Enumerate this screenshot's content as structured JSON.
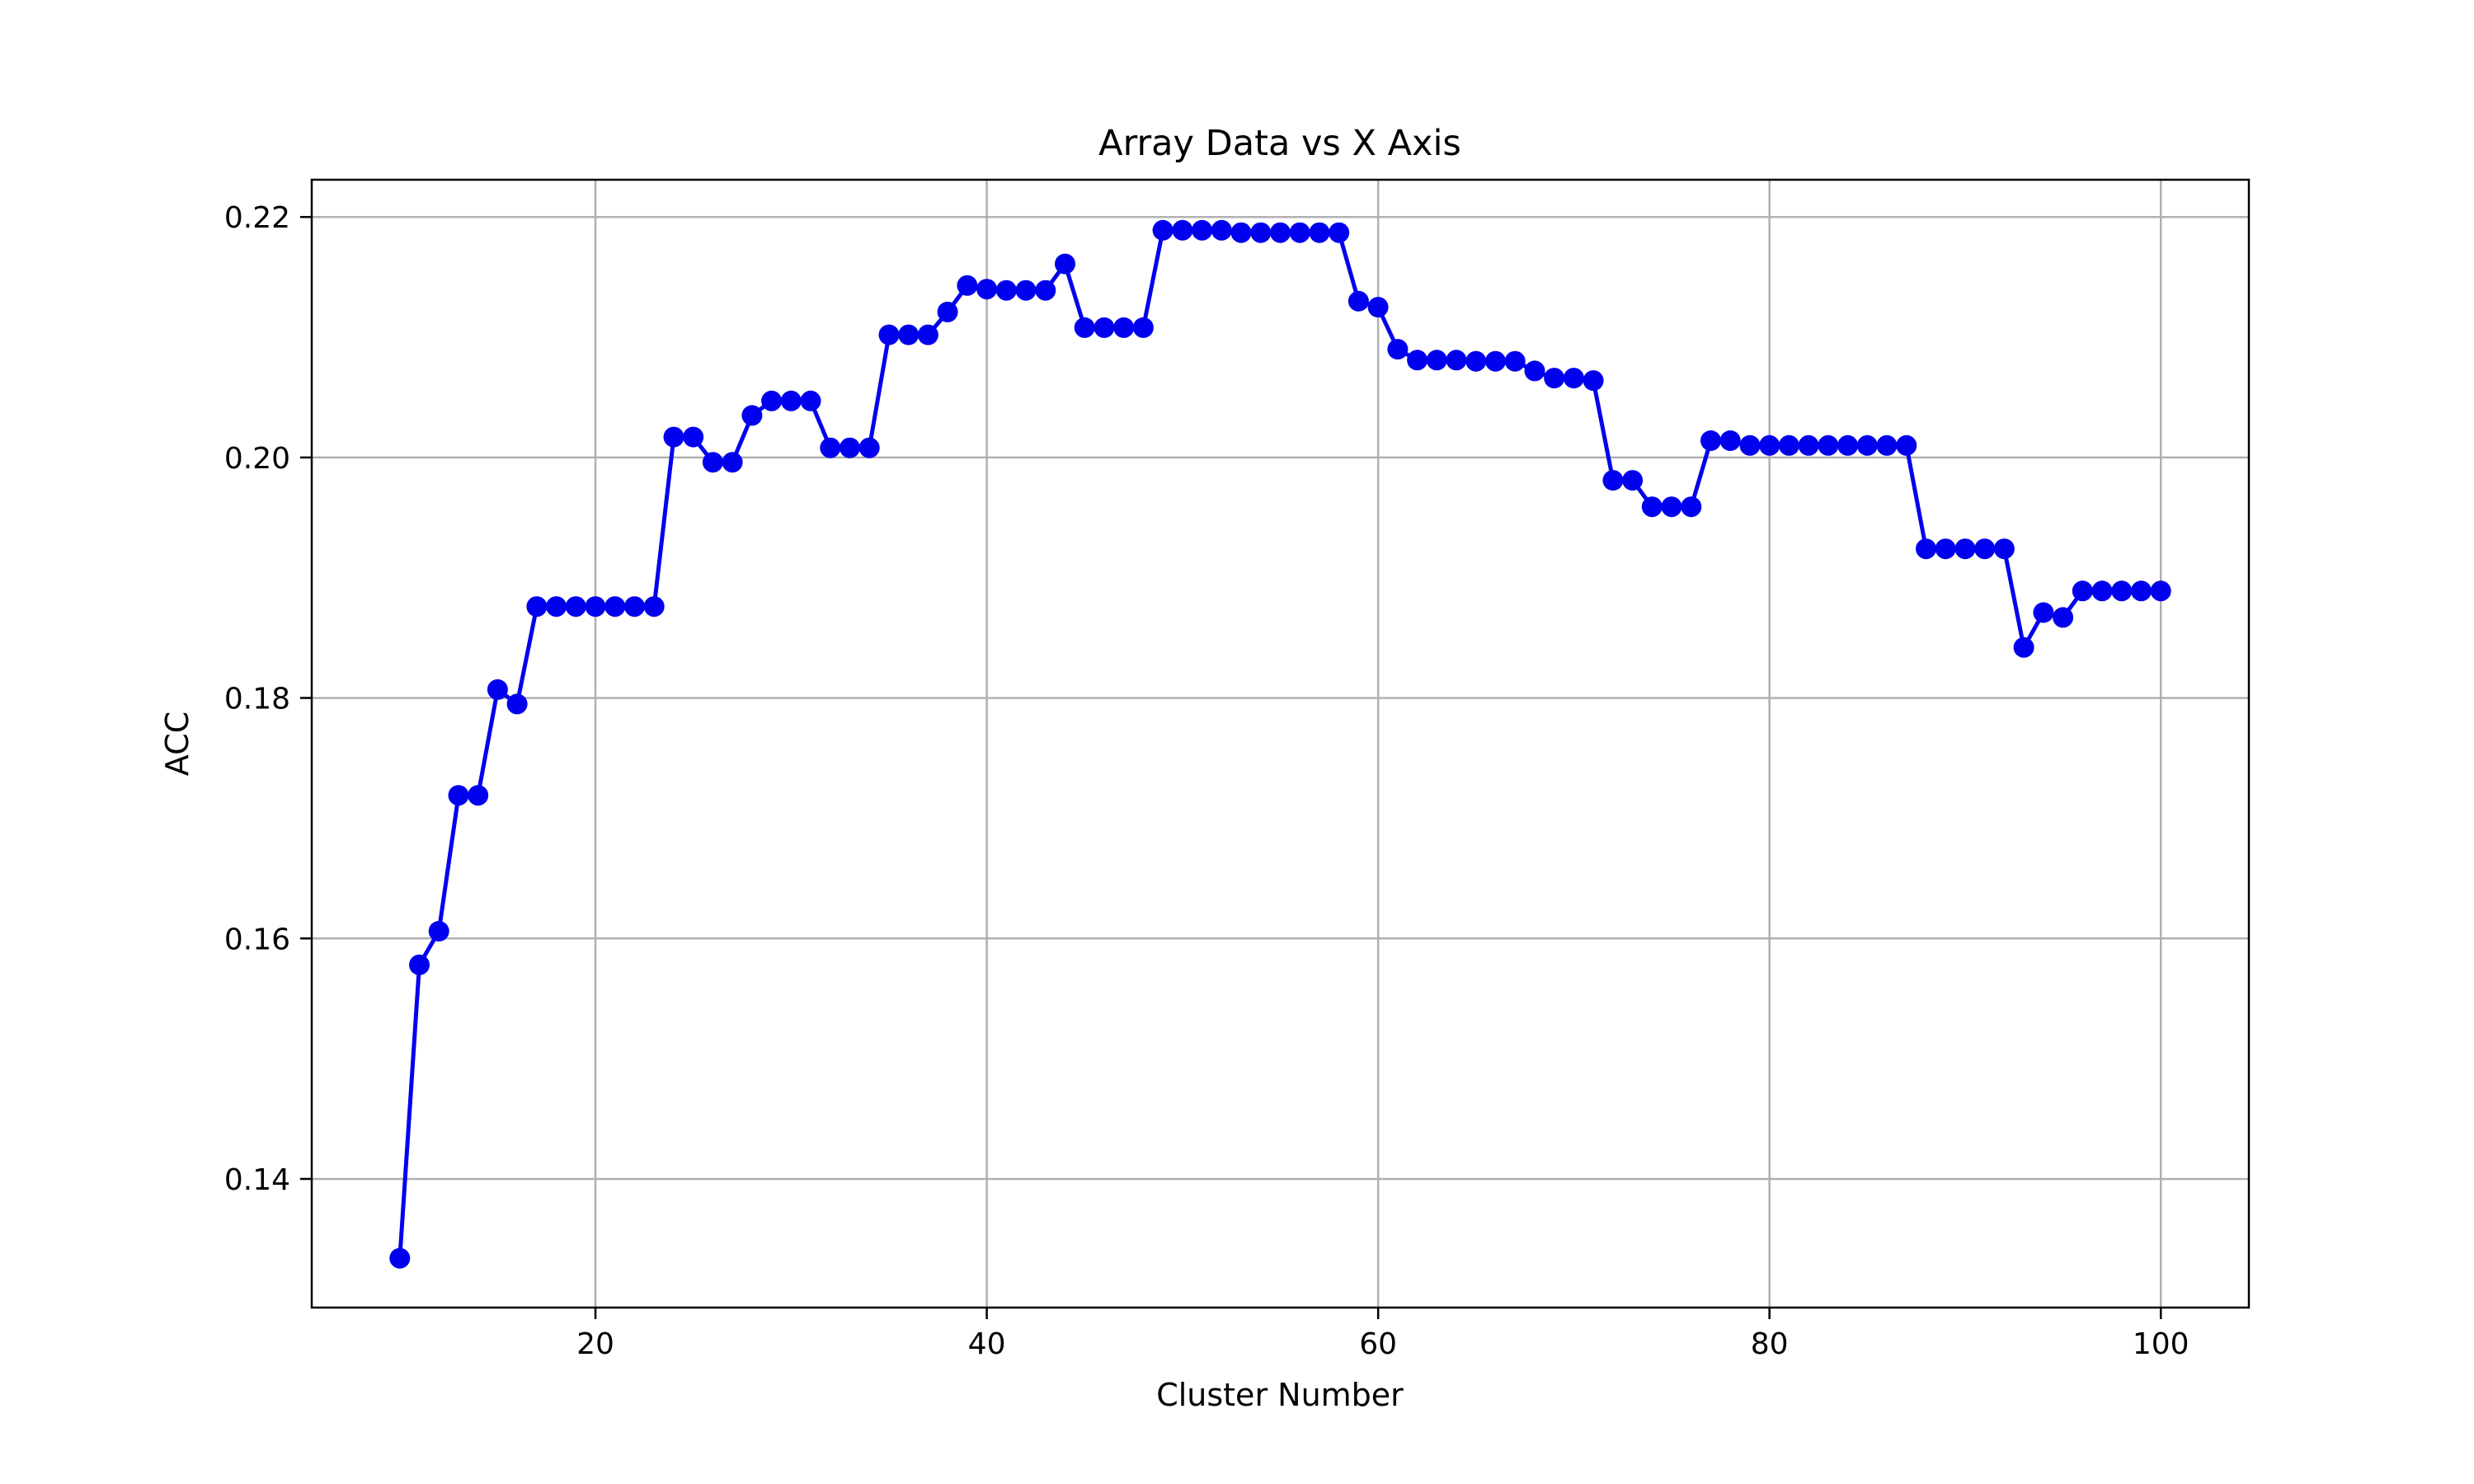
{
  "chart_data": {
    "type": "line",
    "title": "Array Data vs X Axis",
    "xlabel": "Cluster Number",
    "ylabel": "ACC",
    "xlim": [
      5.5,
      104.5
    ],
    "ylim": [
      0.1293,
      0.2231
    ],
    "xticks": [
      20,
      40,
      60,
      80,
      100
    ],
    "xtick_labels": [
      "20",
      "40",
      "60",
      "80",
      "100"
    ],
    "yticks": [
      0.14,
      0.16,
      0.18,
      0.2,
      0.22
    ],
    "ytick_labels": [
      "0.14",
      "0.16",
      "0.18",
      "0.20",
      "0.22"
    ],
    "grid": true,
    "line_color": "#0000ee",
    "marker": "circle",
    "series": [
      {
        "x": [
          10,
          11,
          12,
          13,
          14,
          15,
          16,
          17,
          18,
          19,
          20,
          21,
          22,
          23,
          24,
          25,
          26,
          27,
          28,
          29,
          30,
          31,
          32,
          33,
          34,
          35,
          36,
          37,
          38,
          39,
          40,
          41,
          42,
          43,
          44,
          45,
          46,
          47,
          48,
          49,
          50,
          51,
          52,
          53,
          54,
          55,
          56,
          57,
          58,
          59,
          60,
          61,
          62,
          63,
          64,
          65,
          66,
          67,
          68,
          69,
          70,
          71,
          72,
          73,
          74,
          75,
          76,
          77,
          78,
          79,
          80,
          81,
          82,
          83,
          84,
          85,
          86,
          87,
          88,
          89,
          90,
          91,
          92,
          93,
          94,
          95,
          96,
          97,
          98,
          99,
          100
        ],
        "values": [
          0.1334,
          0.1578,
          0.1606,
          0.1719,
          0.1719,
          0.1807,
          0.1795,
          0.1876,
          0.1876,
          0.1876,
          0.1876,
          0.1876,
          0.1876,
          0.1876,
          0.2017,
          0.2017,
          0.1996,
          0.1996,
          0.2035,
          0.2047,
          0.2047,
          0.2047,
          0.2008,
          0.2008,
          0.2008,
          0.2102,
          0.2102,
          0.2102,
          0.2121,
          0.2143,
          0.214,
          0.2139,
          0.2139,
          0.2139,
          0.2161,
          0.2108,
          0.2108,
          0.2108,
          0.2108,
          0.2189,
          0.2189,
          0.2189,
          0.2189,
          0.2187,
          0.2187,
          0.2187,
          0.2187,
          0.2187,
          0.2187,
          0.213,
          0.2125,
          0.209,
          0.2081,
          0.2081,
          0.2081,
          0.208,
          0.208,
          0.208,
          0.2072,
          0.2066,
          0.2066,
          0.2064,
          0.1981,
          0.1981,
          0.1959,
          0.1959,
          0.1959,
          0.2014,
          0.2014,
          0.201,
          0.201,
          0.201,
          0.201,
          0.201,
          0.201,
          0.201,
          0.201,
          0.201,
          0.1924,
          0.1924,
          0.1924,
          0.1924,
          0.1924,
          0.1842,
          0.1871,
          0.1867,
          0.1889,
          0.1889,
          0.1889,
          0.1889,
          0.1889
        ]
      }
    ]
  }
}
